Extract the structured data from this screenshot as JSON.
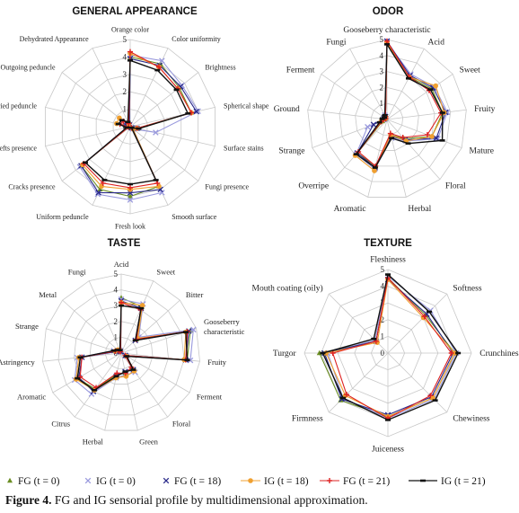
{
  "figure": {
    "caption_label": "Figure 4.",
    "caption_text": " FG and IG sensorial profile by multidimensional approximation."
  },
  "legend": [
    {
      "name": "FG (t = 0)",
      "color": "#6b8e23",
      "marker": "triangle"
    },
    {
      "name": "IG (t = 0)",
      "color": "#9999dd",
      "marker": "x"
    },
    {
      "name": "FG (t = 18)",
      "color": "#2a2a8a",
      "marker": "x"
    },
    {
      "name": "IG (t = 18)",
      "color": "#f0a030",
      "marker": "circle"
    },
    {
      "name": "FG (t = 21)",
      "color": "#dd2222",
      "marker": "plus"
    },
    {
      "name": "IG (t = 21)",
      "color": "#111111",
      "marker": "dash"
    }
  ],
  "chart_data": [
    {
      "type": "radar",
      "title": "GENERAL APPEARANCE",
      "scale_max": 5,
      "ticks": [
        "0",
        "1",
        "2",
        "3",
        "4",
        "5"
      ],
      "categories": [
        "Orange color",
        "Color uniformity",
        "Brightness",
        "Spherical shape",
        "Surface stains",
        "Fungi presence",
        "Smooth surface",
        "Fresh look",
        "Uniform peduncle",
        "Cracks presence",
        "Clefts presence",
        "Dried peduncle",
        "Outgoing peduncle",
        "Dehydrated Appearance"
      ],
      "series": [
        {
          "name": "FG (t = 0)",
          "values": [
            4.0,
            4.0,
            3.6,
            3.6,
            0.5,
            0.1,
            3.8,
            4.0,
            4.0,
            3.6,
            0.1,
            0.1,
            0.2,
            0.1
          ]
        },
        {
          "name": "IG (t = 0)",
          "values": [
            4.1,
            4.2,
            3.8,
            4.0,
            1.5,
            0.2,
            4.2,
            4.2,
            4.3,
            3.7,
            0.2,
            0.2,
            0.3,
            0.1
          ]
        },
        {
          "name": "FG (t = 18)",
          "values": [
            3.9,
            3.9,
            3.7,
            3.9,
            0.4,
            0.1,
            4.0,
            3.8,
            4.2,
            3.6,
            0.1,
            0.2,
            0.3,
            0.1
          ]
        },
        {
          "name": "IG (t = 18)",
          "values": [
            4.2,
            3.8,
            3.5,
            3.6,
            0.4,
            0.2,
            3.8,
            3.6,
            3.8,
            3.5,
            0.1,
            0.8,
            0.8,
            0.2
          ]
        },
        {
          "name": "FG (t = 21)",
          "values": [
            4.3,
            3.8,
            3.5,
            3.6,
            0.4,
            0.1,
            3.6,
            3.5,
            3.6,
            3.4,
            0.1,
            0.6,
            0.5,
            0.2
          ]
        },
        {
          "name": "IG (t = 21)",
          "values": [
            3.8,
            3.6,
            3.4,
            3.4,
            0.5,
            0.1,
            3.4,
            3.3,
            3.4,
            3.3,
            0.2,
            0.7,
            0.6,
            0.3
          ]
        }
      ]
    },
    {
      "type": "radar",
      "title": "ODOR",
      "scale_max": 5,
      "ticks": [
        "0",
        "1",
        "2",
        "3",
        "4",
        "5"
      ],
      "categories": [
        "Gooseberry characteristic",
        "Acid",
        "Sweet",
        "Fruity",
        "Mature",
        "Floral",
        "Herbal",
        "Aromatic",
        "Overripe",
        "Strange",
        "Ground",
        "Ferment",
        "Fungi"
      ],
      "series": [
        {
          "name": "FG (t = 0)",
          "values": [
            4.8,
            3.0,
            3.4,
            3.5,
            3.0,
            1.6,
            1.0,
            3.0,
            2.8,
            0.3,
            0.1,
            0.1,
            0.2
          ]
        },
        {
          "name": "IG (t = 0)",
          "values": [
            4.8,
            3.2,
            3.6,
            3.8,
            3.4,
            1.8,
            1.2,
            3.2,
            2.9,
            1.3,
            0.2,
            0.1,
            0.3
          ]
        },
        {
          "name": "FG (t = 18)",
          "values": [
            4.9,
            3.1,
            3.5,
            3.7,
            3.3,
            1.7,
            1.1,
            3.1,
            2.8,
            0.9,
            0.2,
            0.2,
            0.2
          ]
        },
        {
          "name": "IG (t = 18)",
          "values": [
            4.8,
            3.0,
            3.7,
            3.6,
            3.0,
            1.8,
            1.0,
            3.3,
            3.0,
            0.4,
            0.2,
            0.1,
            0.2
          ]
        },
        {
          "name": "FG (t = 21)",
          "values": [
            4.9,
            3.0,
            3.2,
            3.4,
            2.7,
            1.5,
            0.9,
            3.0,
            2.7,
            0.4,
            0.2,
            0.1,
            0.2
          ]
        },
        {
          "name": "IG (t = 21)",
          "values": [
            4.7,
            2.9,
            3.3,
            3.5,
            3.7,
            2.0,
            1.2,
            3.1,
            2.9,
            0.5,
            0.3,
            0.2,
            0.3
          ]
        }
      ]
    },
    {
      "type": "radar",
      "title": "TASTE",
      "scale_max": 5,
      "ticks": [
        "0",
        "1",
        "2",
        "3",
        "4",
        "5"
      ],
      "categories": [
        "Acid",
        "Sweet",
        "Bitter",
        "Gooseberry characteristic",
        "Fruity",
        "Ferment",
        "Floral",
        "Green",
        "Herbal",
        "Citrus",
        "Aromatic",
        "Astringency",
        "Strange",
        "Metal",
        "Fungi"
      ],
      "series": [
        {
          "name": "FG (t = 0)",
          "values": [
            3.5,
            3.2,
            1.3,
            4.6,
            4.2,
            0.3,
            1.2,
            1.3,
            1.4,
            2.8,
            3.2,
            2.6,
            0.4,
            0.2,
            0.1
          ]
        },
        {
          "name": "IG (t = 0)",
          "values": [
            3.4,
            3.4,
            1.5,
            4.8,
            4.4,
            0.4,
            1.5,
            1.4,
            1.6,
            3.2,
            3.4,
            2.8,
            0.5,
            0.2,
            0.2
          ]
        },
        {
          "name": "FG (t = 18)",
          "values": [
            3.3,
            3.1,
            1.2,
            4.5,
            4.1,
            0.3,
            1.3,
            1.2,
            1.5,
            3.0,
            3.1,
            2.5,
            0.3,
            0.2,
            0.1
          ]
        },
        {
          "name": "IG (t = 18)",
          "values": [
            3.2,
            3.3,
            1.4,
            4.3,
            4.0,
            0.4,
            1.4,
            1.5,
            1.6,
            2.9,
            3.3,
            2.7,
            0.4,
            0.3,
            0.2
          ]
        },
        {
          "name": "FG (t = 21)",
          "values": [
            3.2,
            3.0,
            1.3,
            4.4,
            4.1,
            0.3,
            1.1,
            1.3,
            1.3,
            2.7,
            3.0,
            2.5,
            0.4,
            0.2,
            0.1
          ]
        },
        {
          "name": "IG (t = 21)",
          "values": [
            3.0,
            3.1,
            1.2,
            4.3,
            4.2,
            0.4,
            1.3,
            1.2,
            1.5,
            2.9,
            3.2,
            2.6,
            0.5,
            0.3,
            0.2
          ]
        }
      ]
    },
    {
      "type": "radar",
      "title": "TEXTURE",
      "scale_max": 5,
      "ticks": [
        "0",
        "1",
        "2",
        "3",
        "4",
        "5"
      ],
      "categories": [
        "Fleshiness",
        "Softness",
        "Crunchiness",
        "Chewiness",
        "Juiceness",
        "Firmness",
        "Turgor",
        "Mouth coating (oily)"
      ],
      "series": [
        {
          "name": "FG (t = 0)",
          "values": [
            4.5,
            3.2,
            4.0,
            3.8,
            3.8,
            4.0,
            4.1,
            1.0
          ]
        },
        {
          "name": "IG (t = 0)",
          "values": [
            4.6,
            3.6,
            4.1,
            3.9,
            3.9,
            3.8,
            3.6,
            1.1
          ]
        },
        {
          "name": "FG (t = 18)",
          "values": [
            4.4,
            3.3,
            3.9,
            3.7,
            3.7,
            3.9,
            3.8,
            1.0
          ]
        },
        {
          "name": "IG (t = 18)",
          "values": [
            4.4,
            3.0,
            4.0,
            3.8,
            3.8,
            3.6,
            3.7,
            0.9
          ]
        },
        {
          "name": "FG (t = 21)",
          "values": [
            4.5,
            3.1,
            3.8,
            3.6,
            3.9,
            3.5,
            3.3,
            1.0
          ]
        },
        {
          "name": "IG (t = 21)",
          "values": [
            4.7,
            3.5,
            4.2,
            4.0,
            4.0,
            3.8,
            3.9,
            1.2
          ]
        }
      ]
    }
  ]
}
